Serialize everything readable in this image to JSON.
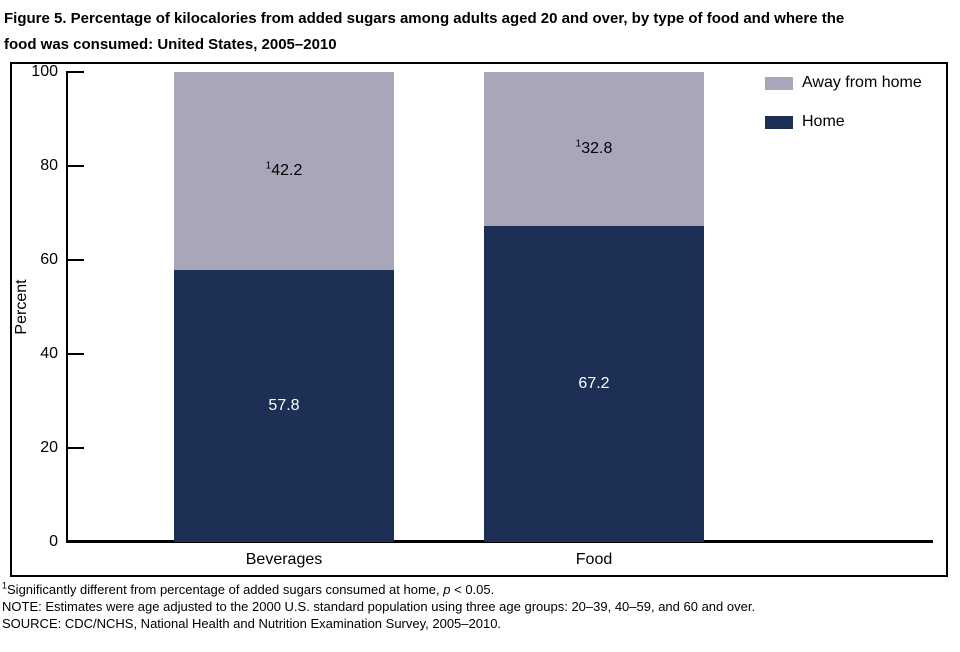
{
  "figure": {
    "title_line1": "Figure 5. Percentage of kilocalories from added sugars among adults aged 20 and over, by type of food and where the",
    "title_line2": "food was consumed: United States, 2005–2010"
  },
  "chart_data": {
    "type": "bar",
    "stacked": true,
    "categories": [
      "Beverages",
      "Food"
    ],
    "series": [
      {
        "name": "Home",
        "values": [
          57.8,
          67.2
        ],
        "color": "#1d2f55"
      },
      {
        "name": "Away from home",
        "values": [
          42.2,
          32.8
        ],
        "color": "#a8a7ba"
      }
    ],
    "title": "Figure 5. Percentage of kilocalories from added sugars among adults aged 20 and over, by type of food and where the food was consumed: United States, 2005–2010",
    "xlabel": "",
    "ylabel": "Percent",
    "ylim": [
      0,
      100
    ],
    "yticks": [
      0,
      20,
      40,
      60,
      80,
      100
    ],
    "grid": false,
    "legend_position": "top-right",
    "value_label_sup": "1",
    "annotation_note": "Away-from-home values carry footnote marker 1"
  },
  "footnotes": {
    "sig_sup": "1",
    "sig_text": "Significantly different from percentage of added sugars consumed at home, ",
    "sig_p": "p",
    "sig_tail": " < 0.05.",
    "note": "NOTE: Estimates were age adjusted to the 2000 U.S. standard population using three age groups: 20–39, 40–59, and 60 and over.",
    "source": "SOURCE: CDC/NCHS, National Health and Nutrition Examination Survey, 2005–2010."
  }
}
